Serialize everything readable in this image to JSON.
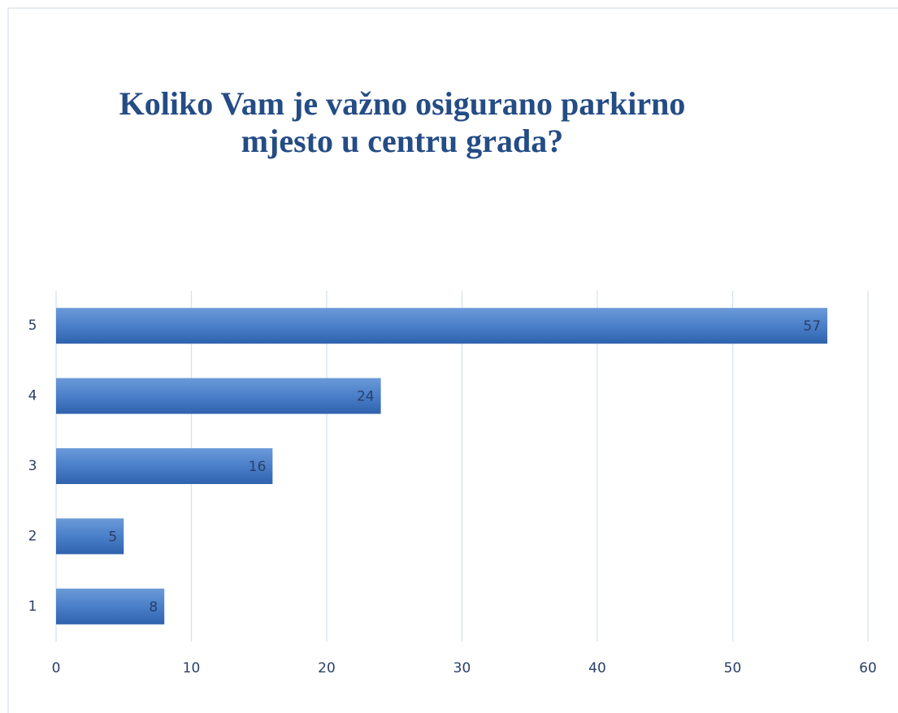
{
  "chart_data": {
    "type": "bar",
    "orientation": "horizontal",
    "title": "Koliko Vam je važno osigurano parkirno mjesto u centru grada?",
    "categories": [
      "1",
      "2",
      "3",
      "4",
      "5"
    ],
    "values": [
      8,
      5,
      16,
      24,
      57
    ],
    "color": "#3f74c0",
    "xlim": [
      0,
      60
    ],
    "xticks": [
      0,
      10,
      20,
      30,
      40,
      50,
      60
    ],
    "grid": true
  }
}
